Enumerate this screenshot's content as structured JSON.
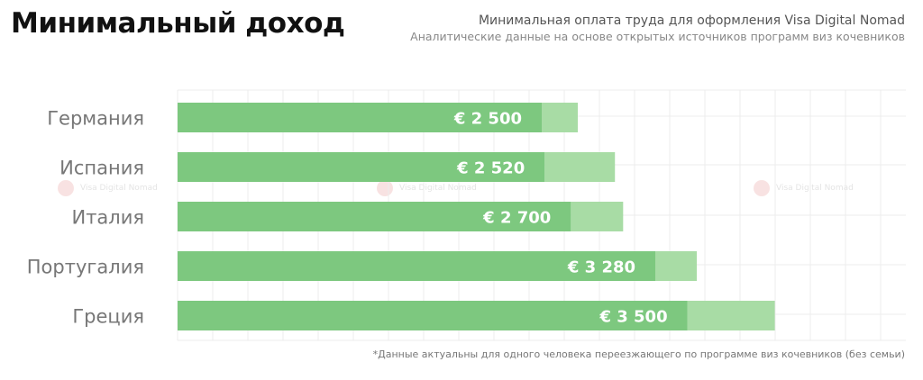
{
  "header": {
    "title": "Минимальный доход",
    "subtitle": "Минимальная оплата труда для оформления Visa Digital Nomad",
    "subtitle2": "Аналитические данные на основе открытых источников программ виз кочевников"
  },
  "watermark": {
    "text": "Visa Digital Nomad"
  },
  "footnote": "*Данные актуальны для одного человека переезжающего по программе виз кочевников (без семьи)",
  "colors": {
    "bar": "#7dc87f",
    "bar_light": "#a8dca5",
    "label": "#777777",
    "value_text": "#ffffff",
    "grid": "#ececec"
  },
  "chart_data": {
    "type": "bar",
    "orientation": "horizontal",
    "categories": [
      "Германия",
      "Испания",
      "Италия",
      "Португалия",
      "Греция"
    ],
    "series": [
      {
        "values": [
          2500,
          2520,
          2700,
          3280,
          3500
        ]
      }
    ],
    "value_labels": [
      "€ 2 500",
      "€ 2 520",
      "€ 2 700",
      "€ 3 280",
      "€ 3 500"
    ],
    "xlim": [
      0,
      5000
    ],
    "grid": true,
    "legend": "none"
  }
}
